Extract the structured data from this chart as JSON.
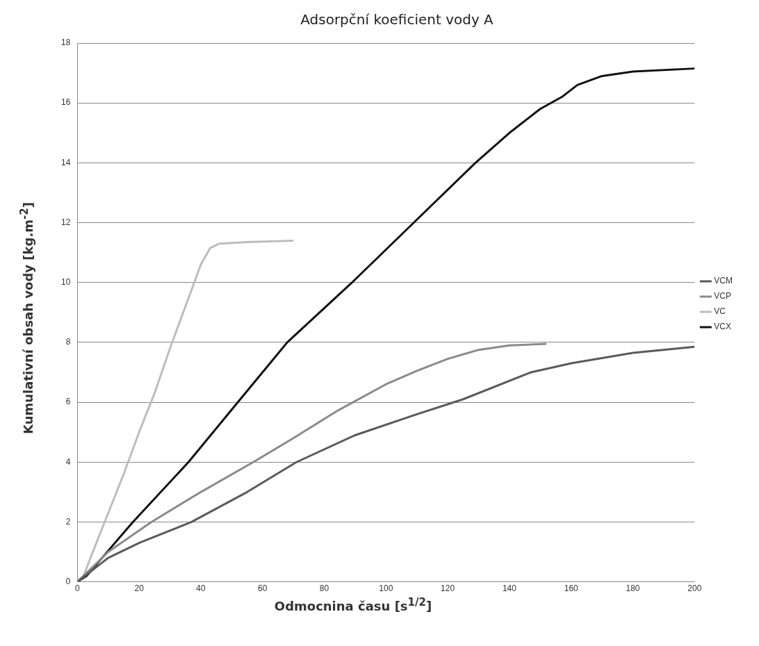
{
  "chart_data": {
    "type": "line",
    "title": "Adsorpční koeficient vody A",
    "xlabel": "Odmocnina času [s$^{1/2}$]",
    "ylabel": "Kumulativní obsah vody [kg.m$^{-2}$]",
    "xlim": [
      0,
      200
    ],
    "xticks": [
      0,
      20,
      40,
      60,
      80,
      100,
      120,
      140,
      160,
      180,
      200
    ],
    "ylim": [
      0,
      18
    ],
    "yticks": [
      0,
      2,
      4,
      6,
      8,
      10,
      12,
      14,
      16,
      18
    ],
    "grid": "y",
    "legend": "right",
    "marker": "none",
    "line_style": "solid",
    "series": [
      {
        "name": "VCM",
        "color": "#5a5a5a",
        "x": [
          0,
          5,
          10,
          20,
          37,
          55,
          71,
          90,
          110,
          125,
          147,
          160,
          180,
          200
        ],
        "values": [
          0,
          0.4,
          0.8,
          1.3,
          2,
          3,
          4,
          4.9,
          5.6,
          6.1,
          7,
          7.3,
          7.65,
          7.85
        ]
      },
      {
        "name": "VCP",
        "color": "#8a8a8a",
        "x": [
          0,
          5,
          10,
          24,
          40,
          57,
          70,
          84,
          100,
          110,
          120,
          130,
          140,
          152
        ],
        "values": [
          0,
          0.5,
          1,
          2,
          3,
          4,
          4.8,
          5.7,
          6.6,
          7.05,
          7.45,
          7.75,
          7.9,
          7.95
        ]
      },
      {
        "name": "VC",
        "color": "#bdbdbd",
        "x": [
          0,
          2,
          5,
          10,
          15,
          20,
          25,
          30,
          35,
          40,
          43,
          46,
          55,
          70
        ],
        "values": [
          0,
          0.2,
          1,
          2.3,
          3.6,
          5,
          6.3,
          7.8,
          9.2,
          10.6,
          11.15,
          11.3,
          11.35,
          11.4
        ]
      },
      {
        "name": "VCX",
        "color": "#111111",
        "x": [
          0,
          3,
          8,
          18,
          36,
          52,
          68,
          89,
          109,
          129,
          140,
          150,
          157,
          162,
          170,
          180,
          200
        ],
        "values": [
          0,
          0.2,
          0.8,
          2,
          4,
          6,
          8,
          10,
          12,
          14,
          15,
          15.8,
          16.2,
          16.6,
          16.9,
          17.05,
          17.15
        ]
      }
    ]
  }
}
